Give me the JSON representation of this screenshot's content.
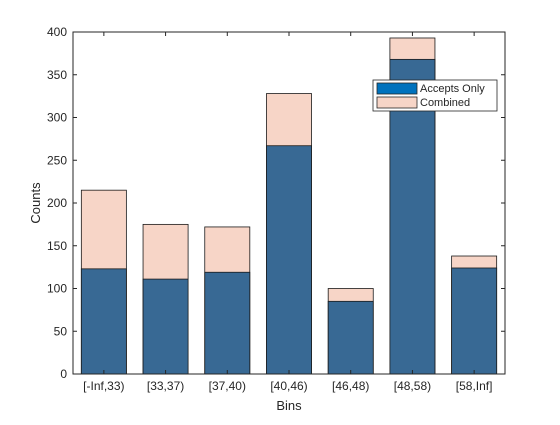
{
  "chart_data": {
    "type": "bar",
    "stacked": false,
    "title": "",
    "xlabel": "Bins",
    "ylabel": "Counts",
    "categories": [
      "[-Inf,33)",
      "[33,37)",
      "[37,40)",
      "[40,46)",
      "[46,48)",
      "[48,58)",
      "[58,Inf]"
    ],
    "ylim": [
      0,
      400
    ],
    "yticks": [
      0,
      50,
      100,
      150,
      200,
      250,
      300,
      350,
      400
    ],
    "grid": false,
    "legend_position": "top-right",
    "series": [
      {
        "name": "Combined",
        "values": [
          215,
          175,
          172,
          328,
          100,
          393,
          138
        ],
        "color": "#f7d5c7"
      },
      {
        "name": "Accepts Only",
        "values": [
          123,
          111,
          119,
          267,
          85,
          368,
          124
        ],
        "color": "#386994"
      }
    ],
    "legend": [
      {
        "name": "Accepts Only",
        "color": "#0072bd"
      },
      {
        "name": "Combined",
        "color": "#f7d5c7"
      }
    ]
  }
}
